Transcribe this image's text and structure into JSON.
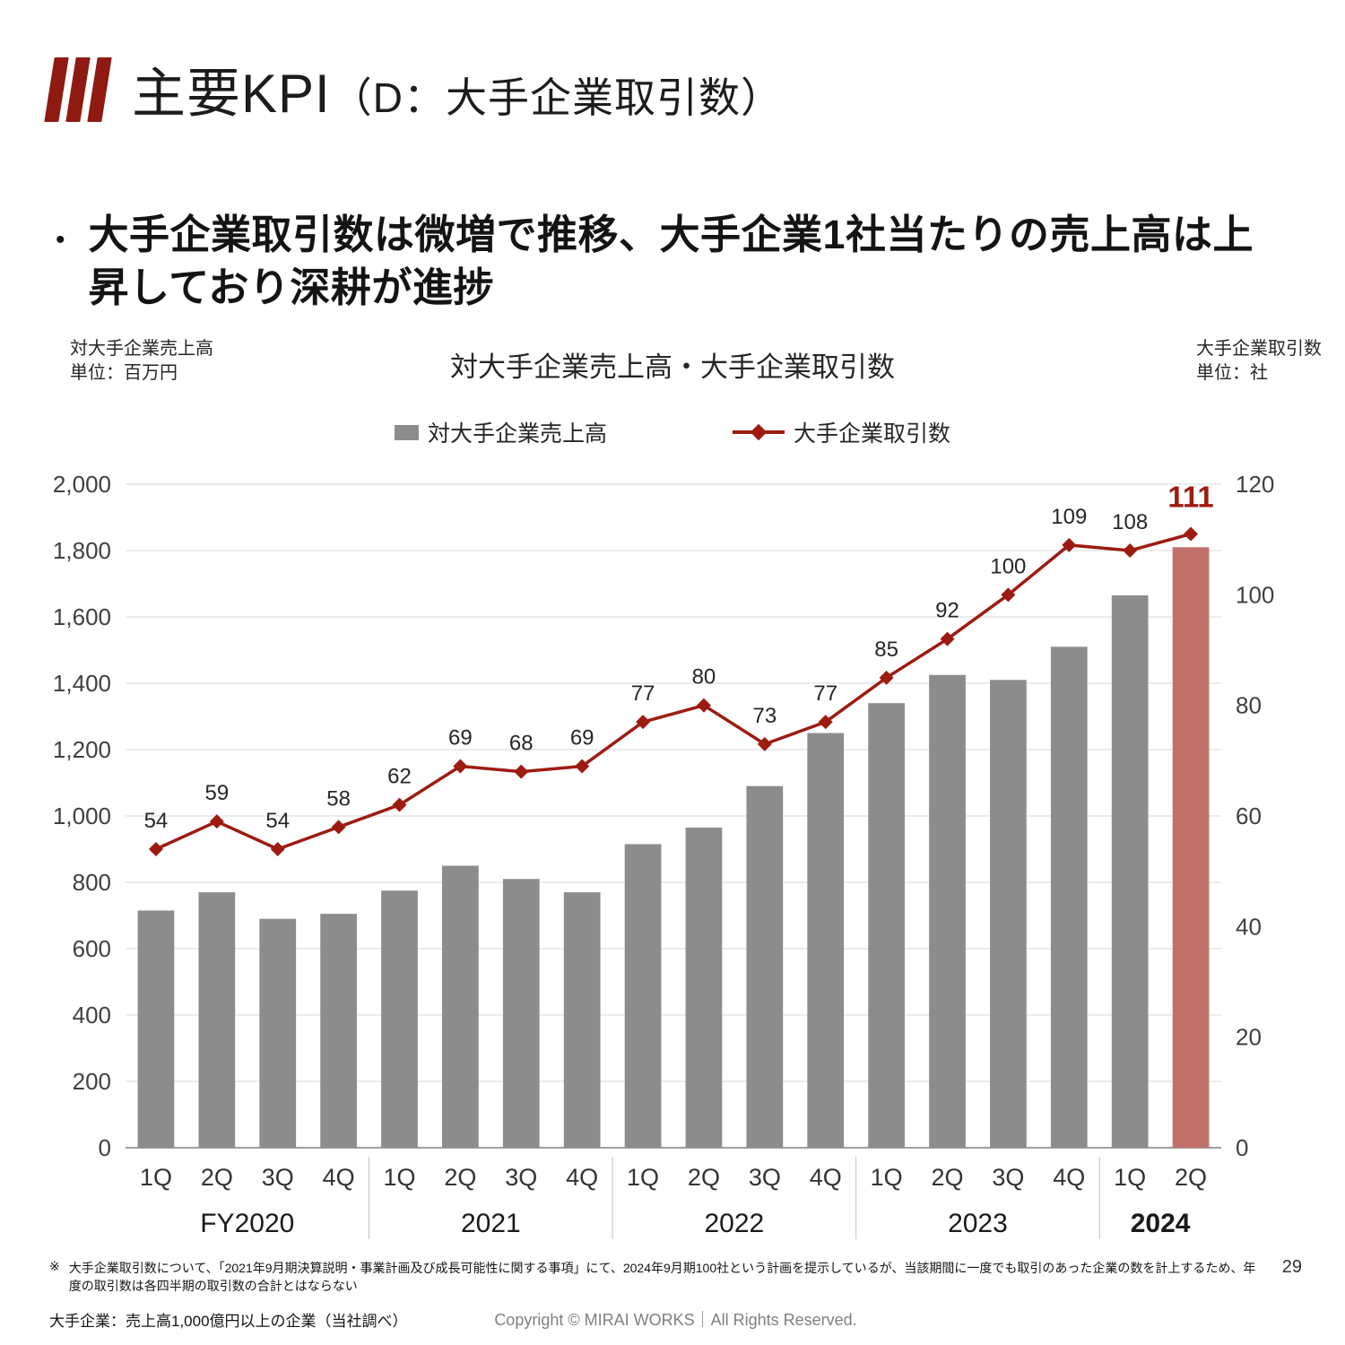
{
  "slide": {
    "title_main": "主要KPI",
    "title_sub": "（D：大手企業取引数）",
    "bullet_marker": "•",
    "bullet_text": "大手企業取引数は微増で推移、大手企業1社当たりの売上高は上昇しており深耕が進捗",
    "page_number": "29"
  },
  "brand": {
    "logo_color": "#8f1a12"
  },
  "chart": {
    "bar_color": "#8c8c8c",
    "bar_highlight_color": "#c1706a",
    "line_color": "#9e1b10",
    "grid_color": "#d9d9d9",
    "axis_line_color": "#7f7f7f",
    "tick_label_color": "#404040",
    "point_label_color": "#262626"
  },
  "chart_data": {
    "type": "bar",
    "title": "対大手企業売上高・大手企業取引数",
    "left_axis": {
      "label": "対大手企業売上高",
      "unit": "単位：百万円",
      "min": 0,
      "max": 2000,
      "tick_step": 200
    },
    "right_axis": {
      "label": "大手企業取引数",
      "unit": "単位：社",
      "min": 0,
      "max": 120,
      "tick_step": 20
    },
    "categories": [
      "1Q",
      "2Q",
      "3Q",
      "4Q",
      "1Q",
      "2Q",
      "3Q",
      "4Q",
      "1Q",
      "2Q",
      "3Q",
      "4Q",
      "1Q",
      "2Q",
      "3Q",
      "4Q",
      "1Q",
      "2Q"
    ],
    "year_groups": [
      {
        "label": "FY2020",
        "span": 4,
        "bold": false
      },
      {
        "label": "2021",
        "span": 4,
        "bold": false
      },
      {
        "label": "2022",
        "span": 4,
        "bold": false
      },
      {
        "label": "2023",
        "span": 4,
        "bold": false
      },
      {
        "label": "2024",
        "span": 2,
        "bold": true
      }
    ],
    "series": [
      {
        "name": "対大手企業売上高",
        "type": "bar",
        "axis": "left",
        "values": [
          715,
          770,
          690,
          705,
          775,
          850,
          810,
          770,
          915,
          965,
          1090,
          1250,
          1340,
          1425,
          1410,
          1510,
          1665,
          1810
        ]
      },
      {
        "name": "大手企業取引数",
        "type": "line",
        "axis": "right",
        "values": [
          54,
          59,
          54,
          58,
          62,
          69,
          68,
          69,
          77,
          80,
          73,
          77,
          85,
          92,
          100,
          109,
          108,
          111
        ]
      }
    ],
    "highlight_last_bar": true,
    "grid": true,
    "legend_position": "top"
  },
  "footer": {
    "note_marker": "※",
    "note1": "大手企業取引数について、「2021年9月期決算説明・事業計画及び成長可能性に関する事項」にて、2024年9月期100社という計画を提示しているが、当該期間に一度でも取引のあった企業の数を計上するため、年度の取引数は各四半期の取引数の合計とはならない",
    "note2": "大手企業：売上高1,000億円以上の企業（当社調べ）",
    "copyright": "Copyright © MIRAI WORKS｜All Rights Reserved."
  }
}
